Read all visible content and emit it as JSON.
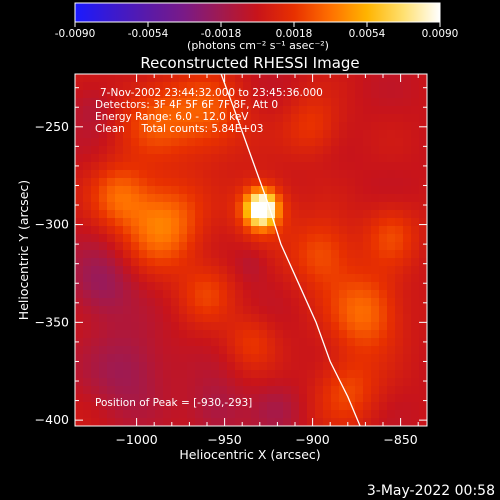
{
  "colorbar": {
    "min": -0.009,
    "max": 0.009,
    "tick_labels": [
      "-0.0090",
      "-0.0054",
      "-0.0018",
      "0.0018",
      "0.0054",
      "0.0090"
    ],
    "unit_label": "(photons cm⁻² s⁻¹ asec⁻²)",
    "colors": [
      "#1a1aff",
      "#3a1ad0",
      "#5a1aa8",
      "#7a1a86",
      "#a01a50",
      "#c8141a",
      "#e83000",
      "#ff7000",
      "#ffb400",
      "#ffe070",
      "#ffffff"
    ]
  },
  "title": "Reconstructed RHESSI Image",
  "info": {
    "line1": "7-Nov-2002 23:44:32.000 to 23:45:36.000",
    "line2": "Detectors: 3F 4F 5F 6F 7F 8F, Att 0",
    "line3": "Energy Range: 6.0 - 12.0 keV",
    "line4": "Clean     Total counts: 5.84E+03",
    "peak": "Position of Peak = [-930,-293]"
  },
  "footer_date": "3-May-2022 00:58",
  "chart_data": {
    "type": "heatmap",
    "title": "Reconstructed RHESSI Image",
    "xlabel": "Heliocentric X (arcsec)",
    "ylabel": "Heliocentric Y (arcsec)",
    "xlim": [
      -1035,
      -835
    ],
    "ylim": [
      -403,
      -223
    ],
    "x_ticks": [
      -1000,
      -950,
      -900,
      -850
    ],
    "x_tick_labels": [
      "−1000",
      "−950",
      "−900",
      "−850"
    ],
    "y_ticks": [
      -250,
      -300,
      -350,
      -400
    ],
    "y_tick_labels": [
      "−250",
      "−300",
      "−350",
      "−400"
    ],
    "peak_position": [
      -930,
      -293
    ],
    "limb_curve": [
      [
        -952,
        -223
      ],
      [
        -945,
        -240
      ],
      [
        -935,
        -265
      ],
      [
        -925,
        -290
      ],
      [
        -918,
        -310
      ],
      [
        -908,
        -330
      ],
      [
        -898,
        -350
      ],
      [
        -890,
        -370
      ],
      [
        -880,
        -388
      ],
      [
        -873,
        -403
      ]
    ],
    "blobs": [
      {
        "x": -929,
        "y": -292,
        "r": 8,
        "v": 0.0095
      },
      {
        "x": -929,
        "y": -292,
        "r": 15,
        "v": 0.0035
      },
      {
        "x": -1010,
        "y": -285,
        "r": 16,
        "v": 0.003
      },
      {
        "x": -985,
        "y": -300,
        "r": 22,
        "v": 0.004
      },
      {
        "x": -960,
        "y": -245,
        "r": 22,
        "v": 0.0028
      },
      {
        "x": -990,
        "y": -245,
        "r": 20,
        "v": 0.0025
      },
      {
        "x": -895,
        "y": -315,
        "r": 18,
        "v": 0.0028
      },
      {
        "x": -870,
        "y": -345,
        "r": 20,
        "v": 0.0035
      },
      {
        "x": -855,
        "y": -305,
        "r": 16,
        "v": 0.0022
      },
      {
        "x": -900,
        "y": -250,
        "r": 16,
        "v": 0.002
      },
      {
        "x": -880,
        "y": -385,
        "r": 18,
        "v": 0.0024
      },
      {
        "x": -960,
        "y": -335,
        "r": 16,
        "v": 0.002
      },
      {
        "x": -935,
        "y": -360,
        "r": 14,
        "v": 0.0018
      },
      {
        "x": -1020,
        "y": -330,
        "r": 18,
        "v": -0.0022
      },
      {
        "x": -1005,
        "y": -375,
        "r": 22,
        "v": -0.002
      },
      {
        "x": -955,
        "y": -395,
        "r": 16,
        "v": -0.0016
      },
      {
        "x": -920,
        "y": -395,
        "r": 14,
        "v": -0.0012
      },
      {
        "x": -1025,
        "y": -240,
        "r": 12,
        "v": -0.001
      },
      {
        "x": -935,
        "y": -320,
        "r": 10,
        "v": -0.001
      }
    ]
  }
}
